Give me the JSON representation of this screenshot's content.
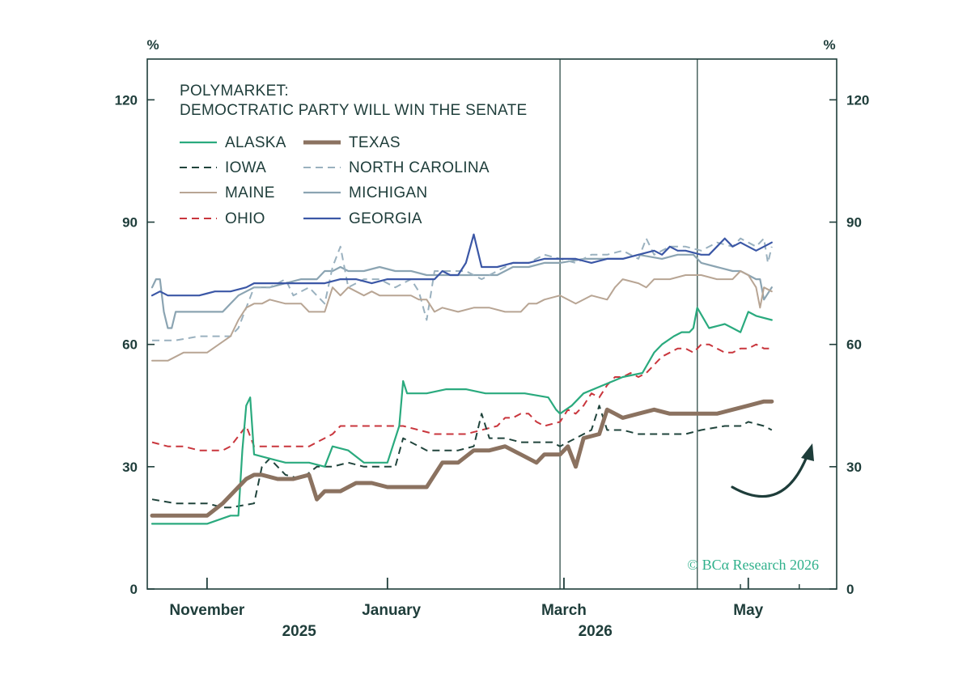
{
  "chart_data": {
    "type": "line",
    "title_lines": [
      "POLYMARKET:",
      "DEMOCTRATIC PARTY WILL WIN THE SENATE"
    ],
    "y_unit_left": "%",
    "y_unit_right": "%",
    "ylim": [
      0,
      130
    ],
    "yticks": [
      0,
      30,
      60,
      90,
      120
    ],
    "ytick_labels": [
      "0",
      "30",
      "60",
      "90",
      "120"
    ],
    "xlim": [
      0,
      170
    ],
    "x_month_ticks": [
      {
        "pos": 14,
        "label": "November"
      },
      {
        "pos": 61,
        "label": "January"
      },
      {
        "pos": 105,
        "label": "March"
      },
      {
        "pos": 152,
        "label": "May"
      }
    ],
    "x_year_ticks": [
      {
        "pos": 37.5,
        "label": "2025"
      },
      {
        "pos": 113,
        "label": "2026"
      }
    ],
    "x_major_ticks": [
      14,
      60,
      105,
      152
    ],
    "x_minor_ticks": [
      150,
      165
    ],
    "vertical_markers": [
      104,
      139
    ],
    "copyright": "© BCα Research 2026",
    "legend_columns": [
      [
        "ALASKA",
        "IOWA",
        "MAINE",
        "OHIO"
      ],
      [
        "TEXAS",
        "NORTH CAROLINA",
        "MICHIGAN",
        "GEORGIA"
      ]
    ],
    "series": [
      {
        "name": "ALASKA",
        "color": "#2aaa7e",
        "dash": "solid",
        "width": 2.2,
        "x": [
          0,
          8,
          14,
          20,
          22,
          23,
          24,
          25,
          26,
          30,
          34,
          40,
          44,
          46,
          50,
          54,
          60,
          63,
          64,
          65,
          70,
          75,
          80,
          85,
          95,
          101,
          103,
          104,
          107,
          110,
          115,
          120,
          125,
          128,
          130,
          133,
          135,
          137,
          138,
          139,
          142,
          146,
          148,
          150,
          152,
          154,
          158
        ],
        "y": [
          16,
          16,
          16,
          18,
          18,
          34,
          45,
          47,
          33,
          32,
          31,
          31,
          30,
          35,
          34,
          31,
          31,
          40,
          51,
          48,
          48,
          49,
          49,
          48,
          48,
          47,
          44,
          43,
          45,
          48,
          50,
          52,
          53,
          58,
          60,
          62,
          63,
          63,
          64,
          69,
          64,
          65,
          64,
          63,
          68,
          67,
          66
        ]
      },
      {
        "name": "TEXAS",
        "color": "#8b7260",
        "dash": "solid",
        "width": 5,
        "x": [
          0,
          8,
          14,
          18,
          20,
          22,
          24,
          26,
          28,
          32,
          36,
          40,
          42,
          44,
          48,
          52,
          56,
          60,
          64,
          70,
          72,
          74,
          78,
          82,
          86,
          90,
          94,
          98,
          100,
          104,
          106,
          108,
          110,
          114,
          116,
          118,
          120,
          124,
          128,
          132,
          136,
          140,
          144,
          148,
          152,
          156,
          158
        ],
        "y": [
          18,
          18,
          18,
          21,
          23,
          25,
          27,
          28,
          28,
          27,
          27,
          28,
          22,
          24,
          24,
          26,
          26,
          25,
          25,
          25,
          28,
          31,
          31,
          34,
          34,
          35,
          33,
          31,
          33,
          33,
          35,
          30,
          37,
          38,
          44,
          43,
          42,
          43,
          44,
          43,
          43,
          43,
          43,
          44,
          45,
          46,
          46
        ]
      },
      {
        "name": "IOWA",
        "color": "#20443c",
        "dash": "dashed",
        "width": 2,
        "x": [
          0,
          6,
          12,
          14,
          18,
          20,
          26,
          28,
          30,
          34,
          38,
          42,
          46,
          50,
          54,
          58,
          62,
          64,
          66,
          70,
          74,
          78,
          82,
          84,
          86,
          90,
          94,
          98,
          102,
          104,
          108,
          112,
          114,
          116,
          120,
          124,
          130,
          136,
          140,
          146,
          150,
          152,
          156,
          158
        ],
        "y": [
          22,
          21,
          21,
          21,
          20,
          20,
          21,
          30,
          32,
          28,
          27,
          30,
          30,
          31,
          30,
          30,
          30,
          37,
          36,
          34,
          34,
          34,
          35,
          43,
          37,
          37,
          36,
          36,
          36,
          35,
          37,
          39,
          45,
          39,
          39,
          38,
          38,
          38,
          39,
          40,
          40,
          41,
          40,
          39
        ]
      },
      {
        "name": "NORTH CAROLINA",
        "color": "#9ab1bf",
        "dash": "dashed",
        "width": 2,
        "x": [
          0,
          6,
          12,
          14,
          20,
          22,
          26,
          30,
          34,
          36,
          40,
          44,
          46,
          48,
          50,
          54,
          58,
          62,
          64,
          66,
          68,
          70,
          72,
          80,
          84,
          88,
          92,
          96,
          100,
          104,
          108,
          112,
          116,
          120,
          124,
          126,
          128,
          132,
          136,
          140,
          144,
          148,
          150,
          152,
          154,
          156,
          157,
          158
        ],
        "y": [
          61,
          61,
          62,
          62,
          62,
          64,
          74,
          74,
          76,
          72,
          74,
          70,
          79,
          84,
          74,
          76,
          76,
          74,
          75,
          76,
          73,
          66,
          78,
          78,
          76,
          78,
          80,
          80,
          82,
          81,
          80,
          82,
          82,
          83,
          81,
          86,
          82,
          84,
          84,
          83,
          85,
          84,
          86,
          85,
          84,
          86,
          80,
          84
        ]
      },
      {
        "name": "MAINE",
        "color": "#b8a594",
        "dash": "solid",
        "width": 2,
        "x": [
          0,
          4,
          8,
          12,
          14,
          20,
          22,
          24,
          26,
          28,
          30,
          34,
          38,
          40,
          42,
          44,
          46,
          48,
          50,
          54,
          56,
          58,
          62,
          66,
          68,
          70,
          72,
          74,
          78,
          82,
          86,
          90,
          94,
          96,
          98,
          100,
          104,
          108,
          112,
          116,
          118,
          120,
          124,
          126,
          128,
          132,
          136,
          140,
          144,
          148,
          150,
          152,
          154,
          155,
          156,
          158
        ],
        "y": [
          56,
          56,
          58,
          58,
          58,
          62,
          66,
          69,
          70,
          70,
          71,
          70,
          70,
          68,
          68,
          68,
          74,
          72,
          74,
          72,
          73,
          72,
          72,
          72,
          71,
          71,
          68,
          69,
          68,
          69,
          69,
          68,
          68,
          70,
          70,
          71,
          72,
          70,
          72,
          71,
          74,
          76,
          75,
          74,
          76,
          76,
          77,
          77,
          76,
          76,
          78,
          77,
          74,
          69,
          74,
          73
        ]
      },
      {
        "name": "MICHIGAN",
        "color": "#8ba4b2",
        "dash": "solid",
        "width": 2.2,
        "x": [
          0,
          1,
          2,
          3,
          4,
          5,
          6,
          8,
          12,
          14,
          18,
          20,
          22,
          26,
          30,
          34,
          38,
          42,
          44,
          46,
          48,
          50,
          54,
          58,
          62,
          66,
          70,
          74,
          78,
          80,
          84,
          88,
          92,
          96,
          100,
          104,
          110,
          116,
          120,
          124,
          130,
          134,
          138,
          140,
          144,
          148,
          150,
          152,
          154,
          155,
          156,
          158
        ],
        "y": [
          74,
          76,
          76,
          68,
          64,
          64,
          68,
          68,
          68,
          68,
          68,
          70,
          72,
          74,
          74,
          75,
          76,
          76,
          78,
          78,
          79,
          78,
          78,
          79,
          78,
          78,
          77,
          77,
          77,
          77,
          77,
          77,
          79,
          79,
          80,
          80,
          81,
          81,
          81,
          82,
          81,
          82,
          82,
          80,
          79,
          78,
          78,
          77,
          76,
          76,
          71,
          74
        ]
      },
      {
        "name": "OHIO",
        "color": "#c9363d",
        "dash": "dashed",
        "width": 2,
        "x": [
          0,
          4,
          8,
          12,
          14,
          18,
          20,
          24,
          26,
          28,
          30,
          34,
          36,
          40,
          44,
          46,
          48,
          50,
          52,
          56,
          60,
          62,
          64,
          68,
          72,
          76,
          80,
          84,
          88,
          90,
          92,
          94,
          96,
          98,
          100,
          104,
          106,
          108,
          110,
          112,
          114,
          116,
          118,
          120,
          122,
          124,
          126,
          128,
          130,
          132,
          134,
          136,
          138,
          140,
          142,
          144,
          146,
          148,
          150,
          152,
          154,
          156,
          158
        ],
        "y": [
          36,
          35,
          35,
          34,
          34,
          34,
          35,
          40,
          35,
          35,
          35,
          35,
          35,
          35,
          37,
          38,
          40,
          40,
          40,
          40,
          40,
          40,
          40,
          39,
          38,
          38,
          38,
          39,
          40,
          42,
          42,
          43,
          43,
          41,
          40,
          41,
          44,
          43,
          45,
          48,
          47,
          50,
          52,
          52,
          53,
          52,
          53,
          55,
          57,
          58,
          59,
          59,
          58,
          60,
          60,
          59,
          58,
          58,
          59,
          59,
          60,
          59,
          59
        ]
      },
      {
        "name": "GEORGIA",
        "color": "#3b57a6",
        "dash": "solid",
        "width": 2.2,
        "x": [
          0,
          2,
          4,
          8,
          12,
          16,
          20,
          24,
          26,
          28,
          32,
          36,
          40,
          44,
          48,
          52,
          56,
          60,
          64,
          68,
          72,
          74,
          76,
          78,
          80,
          82,
          84,
          86,
          88,
          92,
          96,
          100,
          104,
          108,
          112,
          116,
          120,
          124,
          128,
          130,
          132,
          134,
          136,
          140,
          142,
          144,
          146,
          148,
          150,
          152,
          154,
          156,
          158
        ],
        "y": [
          72,
          73,
          72,
          72,
          72,
          73,
          73,
          74,
          75,
          75,
          75,
          75,
          75,
          75,
          76,
          76,
          75,
          76,
          76,
          76,
          76,
          78,
          77,
          77,
          80,
          87,
          79,
          79,
          79,
          80,
          80,
          81,
          81,
          81,
          80,
          81,
          81,
          82,
          83,
          82,
          84,
          83,
          83,
          82,
          82,
          84,
          86,
          84,
          85,
          84,
          83,
          84,
          85
        ]
      }
    ],
    "annotation_arrow": {
      "type": "curved-arrow",
      "color": "#1e3d3a"
    }
  }
}
